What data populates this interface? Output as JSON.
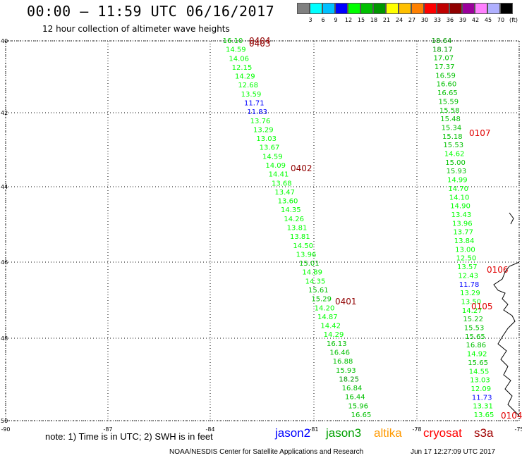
{
  "header": {
    "title": "00:00 — 11:59 UTC 06/16/2017",
    "subtitle": "12 hour collection of altimeter wave heights"
  },
  "scale": {
    "colors": [
      "#808080",
      "#00ffff",
      "#00c0ff",
      "#0000ff",
      "#00ff00",
      "#00c000",
      "#009600",
      "#ffff00",
      "#ffc000",
      "#ff8000",
      "#ff0000",
      "#c00000",
      "#900000",
      "#9b009b",
      "#ff80ff",
      "#b0b0ff",
      "#000000"
    ],
    "labels": [
      "3",
      "6",
      "9",
      "12",
      "15",
      "18",
      "21",
      "24",
      "27",
      "30",
      "33",
      "36",
      "39",
      "42",
      "45",
      "70"
    ],
    "unit": "(ft)"
  },
  "map": {
    "lat_labels": [
      "40",
      "42",
      "44",
      "46",
      "48",
      "50"
    ],
    "lon_labels": [
      "-90",
      "-87",
      "-84",
      "-81",
      "-78",
      "-75"
    ],
    "tracks": [
      {
        "id": "west",
        "x0": 330,
        "x1": 512,
        "values": [
          "16.10",
          "14.59",
          "14.06",
          "12.15",
          "14.29",
          "12.68",
          "13.59",
          "11.71",
          "11.83",
          "13.76",
          "13.29",
          "13.03",
          "13.67",
          "14.59",
          "14.09",
          "14.41",
          "13.68",
          "13.47",
          "13.60",
          "14.35",
          "14.26",
          "13.81",
          "13.81",
          "14.50",
          "13.96",
          "15.01",
          "14.89",
          "14.35",
          "15.61",
          "15.29",
          "14.20",
          "14.87",
          "14.42",
          "14.29",
          "16.13",
          "16.46",
          "16.88",
          "15.93",
          "18.25",
          "16.84",
          "16.44",
          "15.96",
          "16.65"
        ]
      },
      {
        "id": "east",
        "x0": 626,
        "x1": 686,
        "values": [
          "18.64",
          "18.17",
          "17.07",
          "17.37",
          "16.59",
          "16.60",
          "16.65",
          "15.59",
          "15.58",
          "15.48",
          "15.34",
          "15.18",
          "15.53",
          "14.62",
          "15.00",
          "15.93",
          "14.99",
          "14.70",
          "14.10",
          "14.90",
          "13.43",
          "13.96",
          "13.77",
          "13.84",
          "13.00",
          "12.50",
          "13.57",
          "12.43",
          "11.78",
          "13.29",
          "13.50",
          "14.27",
          "15.22",
          "15.53",
          "15.65",
          "16.86",
          "14.92",
          "15.65",
          "14.55",
          "13.03",
          "12.09",
          "11.73",
          "13.31",
          "13.65"
        ]
      }
    ],
    "time_labels": [
      {
        "text": "0404",
        "color": "#900000"
      },
      {
        "text": "0403",
        "color": "#900000"
      },
      {
        "text": "0402",
        "color": "#900000"
      },
      {
        "text": "0401",
        "color": "#900000"
      },
      {
        "text": "0107",
        "color": "#e00000"
      },
      {
        "text": "0106",
        "color": "#e00000"
      },
      {
        "text": "0105",
        "color": "#e00000"
      },
      {
        "text": "0104",
        "color": "#e00000"
      }
    ]
  },
  "footer": {
    "note": "note:  1) Time is in UTC;  2) SWH is in feet",
    "satellites": [
      {
        "name": "jason2",
        "color": "#0000ff"
      },
      {
        "name": "jason3",
        "color": "#00a000"
      },
      {
        "name": "altika",
        "color": "#ff9900"
      },
      {
        "name": "cryosat",
        "color": "#ff0000"
      },
      {
        "name": "s3a",
        "color": "#a00000"
      }
    ],
    "credit": "NOAA/NESDIS Center for Satellite Applications and Research",
    "timestamp": "Jun 17 12:27:09 UTC 2017"
  }
}
